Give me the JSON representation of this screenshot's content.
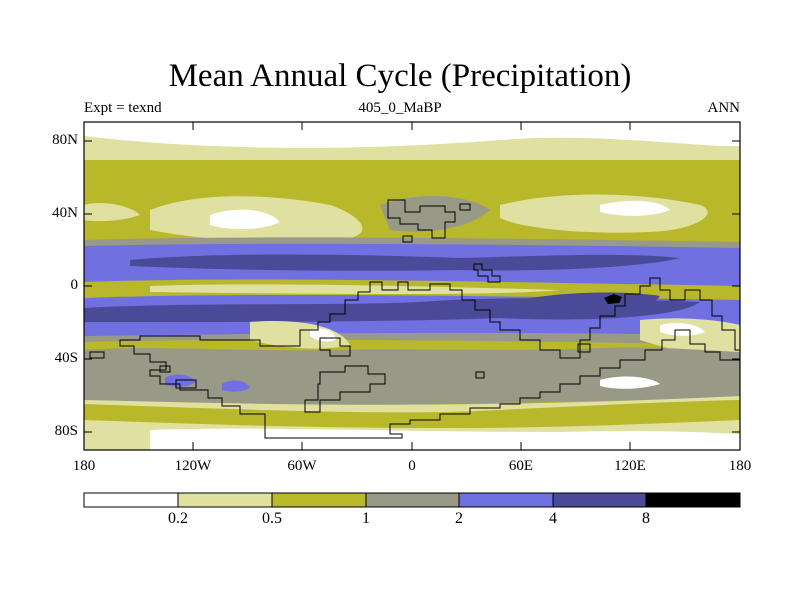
{
  "title": "Mean Annual Cycle (Precipitation)",
  "left_string": "Expt = texnd",
  "center_string": "405_0_MaBP",
  "right_string": "ANN",
  "lat_labels": [
    "80N",
    "40N",
    "0",
    "40S",
    "80S"
  ],
  "lon_labels": [
    "180",
    "120W",
    "60W",
    "0",
    "60E",
    "120E",
    "180"
  ],
  "colorbar": {
    "levels": [
      "0.2",
      "0.5",
      "1",
      "2",
      "4",
      "8"
    ],
    "colors": [
      "#ffffff",
      "#e0e0a0",
      "#b8b82a",
      "#999988",
      "#7070e0",
      "#4a4a98",
      "#000000"
    ]
  },
  "colors": {
    "white": "#ffffff",
    "pale": "#e0e0a0",
    "olive": "#b8b82a",
    "grey": "#999988",
    "lightblue": "#7070e0",
    "darkblue": "#4a4a98",
    "black": "#000000"
  }
}
